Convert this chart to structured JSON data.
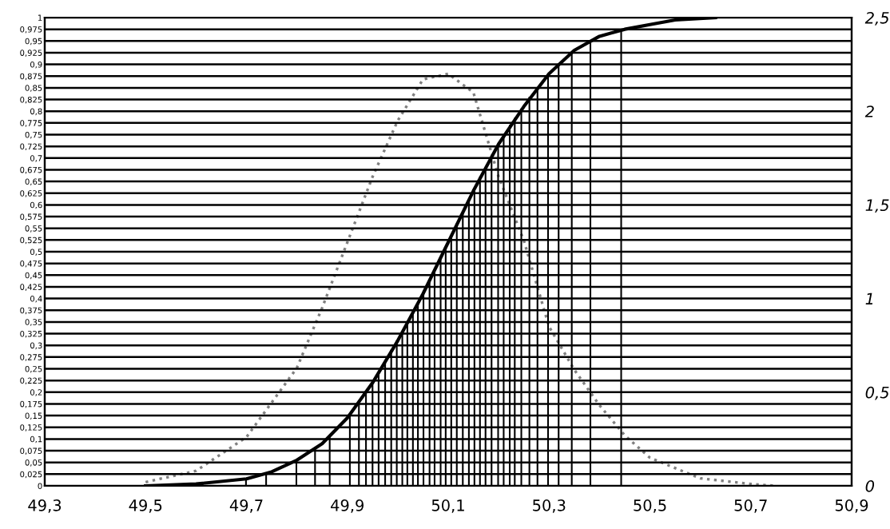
{
  "chart_data": {
    "type": "line",
    "xlim": [
      49.3,
      50.9
    ],
    "xticks": [
      {
        "value": 49.3,
        "label": "49,3"
      },
      {
        "value": 49.5,
        "label": "49,5"
      },
      {
        "value": 49.7,
        "label": "49,7"
      },
      {
        "value": 49.9,
        "label": "49,9"
      },
      {
        "value": 50.1,
        "label": "50,1"
      },
      {
        "value": 50.3,
        "label": "50,3"
      },
      {
        "value": 50.5,
        "label": "50,5"
      },
      {
        "value": 50.7,
        "label": "50,7"
      },
      {
        "value": 50.9,
        "label": "50,9"
      }
    ],
    "ylim": [
      0,
      1
    ],
    "yticks": [
      0,
      {
        "value": 0.025,
        "label": "0,025"
      },
      {
        "value": 0.05,
        "label": "0,05"
      },
      {
        "value": 0.075,
        "label": "0,075"
      },
      {
        "value": 0.1,
        "label": "0,1"
      },
      {
        "value": 0.125,
        "label": "0,125"
      },
      {
        "value": 0.15,
        "label": "0,15"
      },
      {
        "value": 0.175,
        "label": "0,175"
      },
      {
        "value": 0.2,
        "label": "0,2"
      },
      {
        "value": 0.225,
        "label": "0,225"
      },
      {
        "value": 0.25,
        "label": "0,25"
      },
      {
        "value": 0.275,
        "label": "0,275"
      },
      {
        "value": 0.3,
        "label": "0,3"
      },
      {
        "value": 0.325,
        "label": "0,325"
      },
      {
        "value": 0.35,
        "label": "0,35"
      },
      {
        "value": 0.375,
        "label": "0,375"
      },
      {
        "value": 0.4,
        "label": "0,4"
      },
      {
        "value": 0.425,
        "label": "0,425"
      },
      {
        "value": 0.45,
        "label": "0,45"
      },
      {
        "value": 0.475,
        "label": "0,475"
      },
      {
        "value": 0.5,
        "label": "0,5"
      },
      {
        "value": 0.525,
        "label": "0,525"
      },
      {
        "value": 0.55,
        "label": "0,55"
      },
      {
        "value": 0.575,
        "label": "0,575"
      },
      {
        "value": 0.6,
        "label": "0,6"
      },
      {
        "value": 0.625,
        "label": "0,625"
      },
      {
        "value": 0.65,
        "label": "0,65"
      },
      {
        "value": 0.675,
        "label": "0,675"
      },
      {
        "value": 0.7,
        "label": "0,7"
      },
      {
        "value": 0.725,
        "label": "0,725"
      },
      {
        "value": 0.75,
        "label": "0,75"
      },
      {
        "value": 0.775,
        "label": "0,775"
      },
      {
        "value": 0.8,
        "label": "0,8"
      },
      {
        "value": 0.825,
        "label": "0,825"
      },
      {
        "value": 0.85,
        "label": "0,85"
      },
      {
        "value": 0.875,
        "label": "0,875"
      },
      {
        "value": 0.9,
        "label": "0,9"
      },
      {
        "value": 0.925,
        "label": "0,925"
      },
      {
        "value": 0.95,
        "label": "0,95"
      },
      {
        "value": 0.975,
        "label": "0,975"
      },
      1
    ],
    "y2lim": [
      0,
      2.5
    ],
    "y2ticks": [
      0,
      {
        "value": 0.5,
        "label": "0,5"
      },
      1,
      {
        "value": 1.5,
        "label": "1,5"
      },
      2,
      {
        "value": 2.5,
        "label": "2,5"
      }
    ],
    "grid": "y",
    "legend": false,
    "series": [
      {
        "type": "bar",
        "color": "#000000",
        "x": [
          49.699,
          49.739,
          49.799,
          49.836,
          49.865,
          49.905,
          49.923,
          49.937,
          49.95,
          49.962,
          49.975,
          49.987,
          49.998,
          50.009,
          50.019,
          50.03,
          50.04,
          50.051,
          50.063,
          50.073,
          50.085,
          50.095,
          50.106,
          50.117,
          50.129,
          50.141,
          50.152,
          50.163,
          50.174,
          50.186,
          50.199,
          50.21,
          50.222,
          50.232,
          50.245,
          50.261,
          50.277,
          50.298,
          50.319,
          50.345,
          50.382,
          50.443
        ],
        "values": [
          0.015,
          0.027,
          0.055,
          0.08,
          0.105,
          0.15,
          0.175,
          0.2,
          0.22,
          0.24,
          0.265,
          0.29,
          0.31,
          0.33,
          0.35,
          0.37,
          0.39,
          0.41,
          0.435,
          0.46,
          0.485,
          0.51,
          0.535,
          0.56,
          0.585,
          0.61,
          0.635,
          0.66,
          0.68,
          0.705,
          0.73,
          0.75,
          0.77,
          0.785,
          0.805,
          0.83,
          0.85,
          0.88,
          0.9,
          0.925,
          0.95,
          0.975
        ]
      },
      {
        "color": "#000000",
        "line_style": "solid",
        "x": [
          49.5,
          49.6,
          49.7,
          49.75,
          49.8,
          49.85,
          49.9,
          49.95,
          50.0,
          50.05,
          50.1,
          50.15,
          50.2,
          50.25,
          50.3,
          50.35,
          50.4,
          50.45,
          50.5,
          50.55,
          50.63
        ],
        "values": [
          0.0,
          0.004,
          0.015,
          0.03,
          0.055,
          0.09,
          0.145,
          0.22,
          0.31,
          0.41,
          0.52,
          0.63,
          0.73,
          0.81,
          0.88,
          0.93,
          0.96,
          0.975,
          0.985,
          0.995,
          1.0
        ]
      },
      {
        "type": "line",
        "axis": "y2",
        "color": "#808080",
        "line_style": "dotted",
        "x": [
          49.5,
          49.6,
          49.7,
          49.8,
          49.85,
          49.9,
          49.95,
          50.0,
          50.05,
          50.1,
          50.15,
          50.2,
          50.25,
          50.3,
          50.35,
          50.4,
          50.45,
          50.5,
          50.6,
          50.7,
          50.75
        ],
        "values": [
          0.02,
          0.08,
          0.26,
          0.63,
          0.95,
          1.3,
          1.65,
          1.95,
          2.17,
          2.2,
          2.1,
          1.65,
          1.31,
          0.85,
          0.62,
          0.43,
          0.27,
          0.15,
          0.04,
          0.01,
          0.0
        ]
      }
    ]
  }
}
